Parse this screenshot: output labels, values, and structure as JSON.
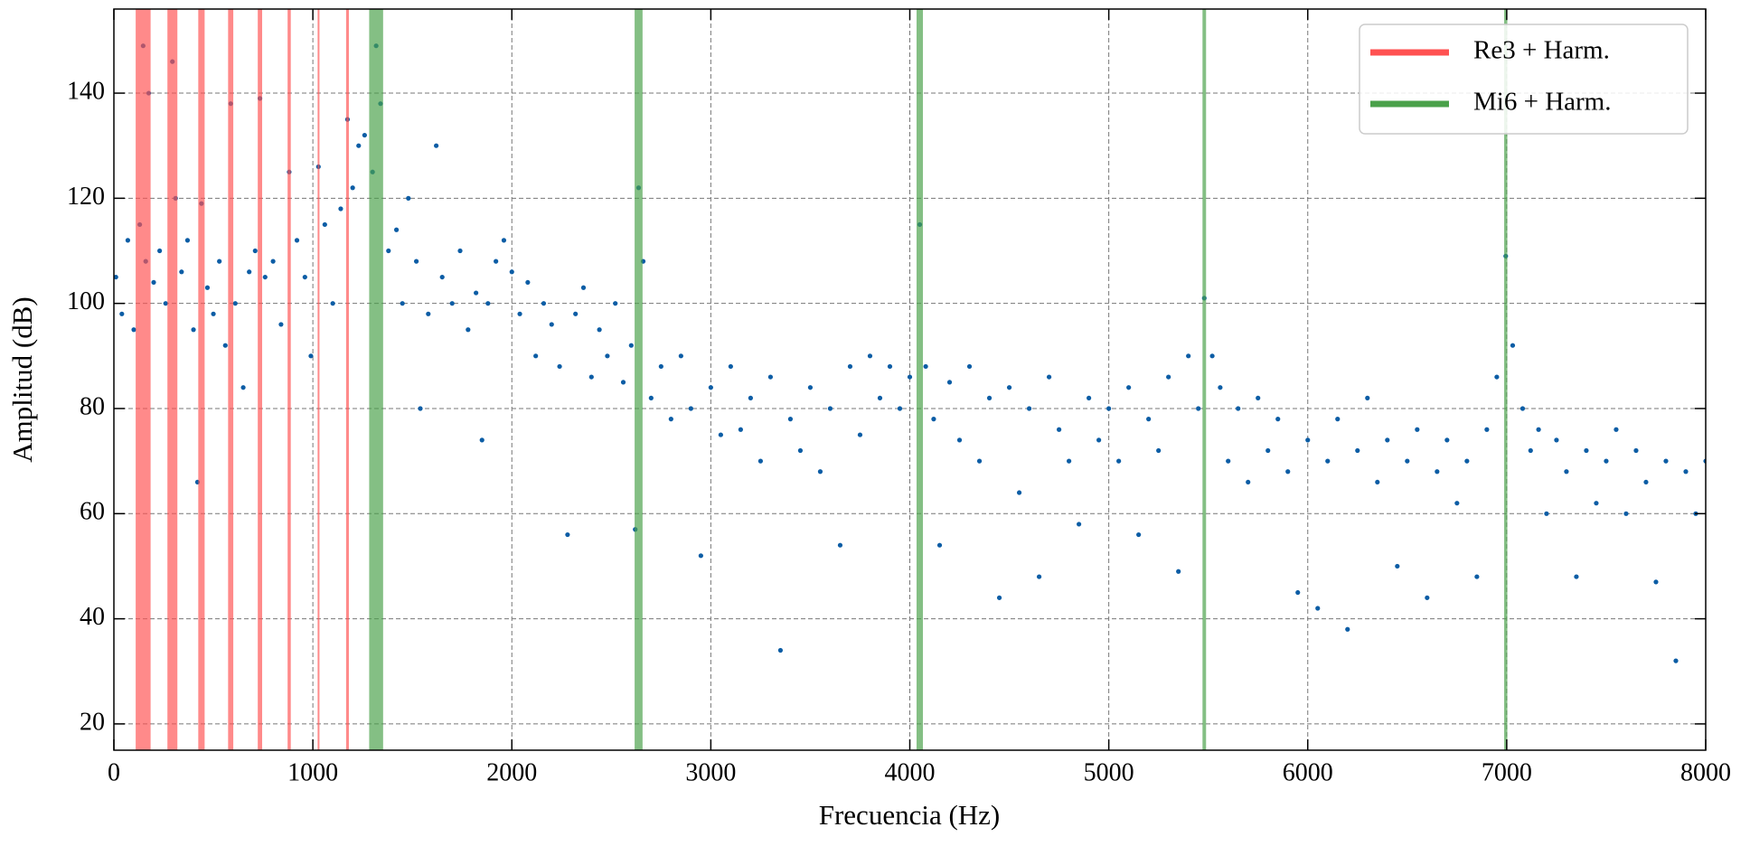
{
  "chart_data": {
    "type": "scatter",
    "x_label": "Frecuencia (Hz)",
    "y_label": "Amplitud (dB)",
    "xlim": [
      0,
      8000
    ],
    "ylim": [
      15,
      156
    ],
    "xticks": [
      0,
      1000,
      2000,
      3000,
      4000,
      5000,
      6000,
      7000,
      8000
    ],
    "yticks": [
      20,
      40,
      60,
      80,
      100,
      120,
      140
    ],
    "grid": true,
    "legend": "upper right",
    "series": [
      {
        "color": "#0c5da5",
        "x": [
          10,
          40,
          70,
          100,
          130,
          147,
          160,
          175,
          200,
          230,
          260,
          294,
          310,
          340,
          370,
          400,
          420,
          440,
          470,
          500,
          530,
          560,
          587,
          610,
          650,
          680,
          710,
          734,
          760,
          800,
          840,
          881,
          920,
          960,
          990,
          1028,
          1060,
          1100,
          1140,
          1174,
          1200,
          1230,
          1260,
          1300,
          1318,
          1340,
          1380,
          1420,
          1450,
          1480,
          1520,
          1540,
          1580,
          1620,
          1650,
          1700,
          1740,
          1780,
          1820,
          1850,
          1880,
          1920,
          1960,
          2000,
          2040,
          2080,
          2120,
          2160,
          2200,
          2240,
          2280,
          2320,
          2360,
          2400,
          2440,
          2480,
          2520,
          2560,
          2600,
          2620,
          2637,
          2660,
          2700,
          2750,
          2800,
          2850,
          2900,
          2950,
          3000,
          3050,
          3100,
          3150,
          3200,
          3250,
          3300,
          3350,
          3400,
          3450,
          3500,
          3550,
          3600,
          3650,
          3700,
          3750,
          3800,
          3850,
          3900,
          3950,
          4000,
          4050,
          4080,
          4120,
          4150,
          4200,
          4250,
          4300,
          4350,
          4400,
          4450,
          4500,
          4550,
          4600,
          4650,
          4700,
          4750,
          4800,
          4850,
          4900,
          4950,
          5000,
          5050,
          5100,
          5150,
          5200,
          5250,
          5300,
          5350,
          5400,
          5450,
          5480,
          5520,
          5560,
          5600,
          5650,
          5700,
          5750,
          5800,
          5850,
          5900,
          5950,
          6000,
          6050,
          6100,
          6150,
          6200,
          6250,
          6300,
          6350,
          6400,
          6450,
          6500,
          6550,
          6600,
          6650,
          6700,
          6750,
          6800,
          6850,
          6900,
          6950,
          6995,
          7030,
          7080,
          7120,
          7160,
          7200,
          7250,
          7300,
          7350,
          7400,
          7450,
          7500,
          7550,
          7600,
          7650,
          7700,
          7750,
          7800,
          7850,
          7900,
          7950,
          8000
        ],
        "values": [
          105,
          98,
          112,
          95,
          115,
          149,
          108,
          140,
          104,
          110,
          100,
          146,
          120,
          106,
          112,
          95,
          66,
          119,
          103,
          98,
          108,
          92,
          138,
          100,
          84,
          106,
          110,
          139,
          105,
          108,
          96,
          125,
          112,
          105,
          90,
          126,
          115,
          100,
          118,
          135,
          122,
          130,
          132,
          125,
          149,
          138,
          110,
          114,
          100,
          120,
          108,
          80,
          98,
          130,
          105,
          100,
          110,
          95,
          102,
          74,
          100,
          108,
          112,
          106,
          98,
          104,
          90,
          100,
          96,
          88,
          56,
          98,
          103,
          86,
          95,
          90,
          100,
          85,
          92,
          57,
          122,
          108,
          82,
          88,
          78,
          90,
          80,
          52,
          84,
          75,
          88,
          76,
          82,
          70,
          86,
          34,
          78,
          72,
          84,
          68,
          80,
          54,
          88,
          75,
          90,
          82,
          88,
          80,
          86,
          115,
          88,
          78,
          54,
          85,
          74,
          88,
          70,
          82,
          44,
          84,
          64,
          80,
          48,
          86,
          76,
          70,
          58,
          82,
          74,
          80,
          70,
          84,
          56,
          78,
          72,
          86,
          49,
          90,
          80,
          101,
          90,
          84,
          70,
          80,
          66,
          82,
          72,
          78,
          68,
          45,
          74,
          42,
          70,
          78,
          38,
          72,
          82,
          66,
          74,
          50,
          70,
          76,
          44,
          68,
          74,
          62,
          70,
          48,
          76,
          86,
          109,
          92,
          80,
          72,
          76,
          60,
          74,
          68,
          48,
          72,
          62,
          70,
          76,
          60,
          72,
          66,
          47,
          70,
          32,
          68,
          60,
          70
        ]
      }
    ],
    "bands": [
      {
        "name": "Re3 + Harm.",
        "color": "#ff5252",
        "x": [
          147,
          294,
          440,
          587,
          734,
          881,
          1028,
          1174
        ],
        "widths": [
          75,
          50,
          32,
          26,
          22,
          16,
          8,
          14
        ]
      },
      {
        "name": "Mi6 + Harm.",
        "color": "#4aa14a",
        "x": [
          1318,
          2637,
          4050,
          5480,
          6995
        ],
        "widths": [
          70,
          40,
          32,
          18,
          16
        ]
      }
    ]
  }
}
